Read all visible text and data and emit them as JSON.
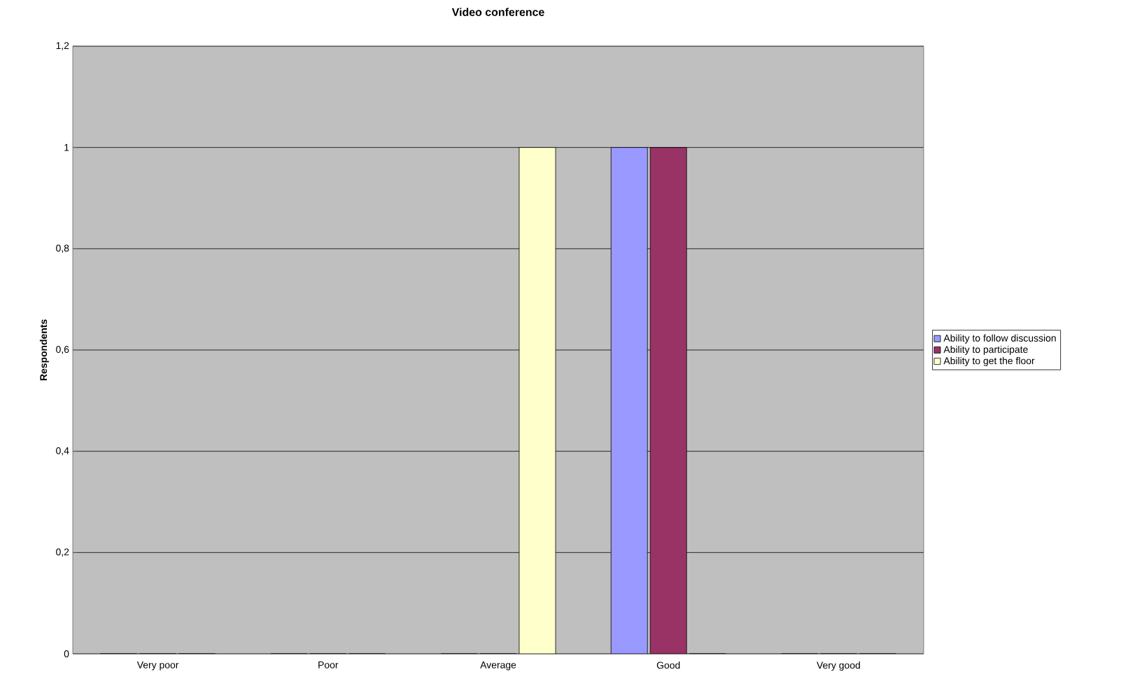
{
  "chart_data": {
    "type": "bar",
    "title": "Video conference",
    "ylabel": "Respondents",
    "categories": [
      "Very poor",
      "Poor",
      "Average",
      "Good",
      "Very good"
    ],
    "series": [
      {
        "name": "Ability to follow discussion",
        "color": "#9999ff",
        "values": [
          0,
          0,
          0,
          1,
          0
        ]
      },
      {
        "name": "Ability to participate",
        "color": "#993366",
        "values": [
          0,
          0,
          0,
          1,
          0
        ]
      },
      {
        "name": "Ability to get the floor",
        "color": "#ffffcc",
        "values": [
          0,
          0,
          1,
          0,
          0
        ]
      }
    ],
    "ylim": [
      0,
      1.2
    ],
    "yticks": [
      0,
      {
        "value": 0.2,
        "label": "0,2"
      },
      {
        "value": 0.4,
        "label": "0,4"
      },
      {
        "value": 0.6,
        "label": "0,6"
      },
      {
        "value": 0.8,
        "label": "0,8"
      },
      1,
      {
        "value": 1.2,
        "label": "1,2"
      }
    ],
    "grid": "y",
    "legend": "right"
  }
}
